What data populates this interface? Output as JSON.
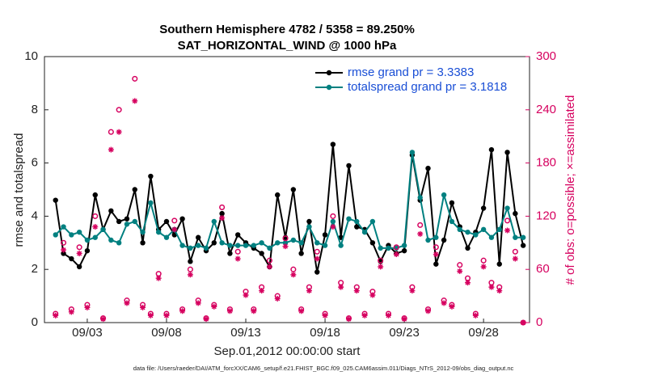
{
  "chart_data": {
    "type": "line",
    "title": "Southern Hemisphere 4782 / 5358 = 89.250%",
    "subtitle": "SAT_HORIZONTAL_WIND @ 1000 hPa",
    "ylabel": "rmse and totalspread",
    "y2label": "# of obs: o=possible; ×=assimilated",
    "xlabel": "Sep.01,2012 00:00:00 start",
    "footnote": "data file: /Users/raeder/DAI/ATM_forcXX/CAM6_setup/f.e21.FHIST_BGC.f09_025.CAM6assim.011/Diags_NTrS_2012-09/obs_diag_output.nc",
    "x": [
      0,
      0.5,
      1,
      1.5,
      2,
      2.5,
      3,
      3.5,
      4,
      4.5,
      5,
      5.5,
      6,
      6.5,
      7,
      7.5,
      8,
      8.5,
      9,
      9.5,
      10,
      10.5,
      11,
      11.5,
      12,
      12.5,
      13,
      13.5,
      14,
      14.5,
      15,
      15.5,
      16,
      16.5,
      17,
      17.5,
      18,
      18.5,
      19,
      19.5,
      20,
      20.5,
      21,
      21.5,
      22,
      22.5,
      23,
      23.5,
      24,
      24.5,
      25,
      25.5,
      26,
      26.5,
      27,
      27.5,
      28,
      28.5,
      29,
      29.5
    ],
    "xlim": [
      -0.7,
      29.9
    ],
    "xticks": [
      {
        "value": 2,
        "label": "09/03"
      },
      {
        "value": 7,
        "label": "09/08"
      },
      {
        "value": 12,
        "label": "09/13"
      },
      {
        "value": 17,
        "label": "09/18"
      },
      {
        "value": 22,
        "label": "09/23"
      },
      {
        "value": 27,
        "label": "09/28"
      }
    ],
    "ylim": [
      0,
      10
    ],
    "yticks": [
      0,
      2,
      4,
      6,
      8,
      10
    ],
    "y2lim": [
      0,
      300
    ],
    "y2ticks": [
      0,
      60,
      120,
      180,
      240,
      300
    ],
    "series": [
      {
        "name": "rmse grand pr = 3.3383",
        "color": "#000000",
        "marker": "filled-circle",
        "values": [
          4.6,
          2.6,
          2.4,
          2.1,
          2.7,
          4.8,
          3.5,
          4.2,
          3.8,
          3.9,
          5.0,
          3.0,
          5.5,
          3.5,
          3.8,
          3.3,
          3.9,
          2.3,
          3.2,
          2.7,
          3.0,
          4.1,
          2.6,
          3.3,
          3.0,
          2.8,
          2.6,
          2.1,
          4.8,
          3.2,
          5.0,
          2.6,
          3.8,
          1.9,
          3.3,
          6.7,
          3.2,
          5.9,
          3.6,
          3.5,
          3.0,
          2.3,
          2.9,
          2.6,
          2.7,
          6.3,
          4.6,
          5.8,
          2.2,
          3.1,
          4.5,
          3.6,
          2.8,
          3.4,
          4.3,
          6.5,
          2.2,
          6.4,
          4.1,
          2.9
        ]
      },
      {
        "name": "totalspread grand pr = 3.1818",
        "color": "#008080",
        "marker": "filled-circle",
        "values": [
          3.3,
          3.6,
          3.3,
          3.4,
          3.1,
          3.2,
          3.5,
          3.1,
          3.0,
          3.7,
          3.8,
          3.4,
          4.5,
          3.4,
          3.2,
          3.5,
          2.9,
          2.8,
          2.9,
          2.8,
          3.8,
          3.0,
          2.9,
          2.9,
          2.9,
          2.9,
          3.0,
          2.8,
          3.0,
          3.0,
          3.1,
          3.0,
          3.6,
          3.0,
          2.9,
          3.8,
          2.9,
          3.9,
          3.8,
          3.4,
          3.8,
          2.8,
          2.8,
          2.8,
          2.9,
          6.4,
          4.7,
          3.1,
          3.2,
          4.8,
          3.8,
          3.5,
          3.4,
          3.3,
          3.5,
          3.2,
          3.5,
          4.3,
          3.2,
          3.2
        ]
      },
      {
        "name": "possible",
        "color": "#d6005f",
        "marker": "open-circle",
        "axis": "y2",
        "values": [
          10,
          90,
          15,
          85,
          20,
          120,
          5,
          215,
          240,
          25,
          275,
          20,
          10,
          55,
          10,
          115,
          15,
          60,
          25,
          5,
          20,
          130,
          15,
          80,
          35,
          15,
          40,
          70,
          30,
          95,
          60,
          15,
          40,
          80,
          10,
          120,
          45,
          5,
          40,
          10,
          35,
          70,
          10,
          85,
          5,
          40,
          110,
          15,
          85,
          25,
          20,
          65,
          50,
          10,
          70,
          45,
          40,
          115,
          80,
          0
        ]
      },
      {
        "name": "assimilated",
        "color": "#d6005f",
        "marker": "asterisk",
        "axis": "y2",
        "values": [
          8,
          82,
          12,
          78,
          17,
          108,
          4,
          195,
          215,
          22,
          250,
          17,
          8,
          50,
          8,
          105,
          13,
          54,
          22,
          4,
          18,
          118,
          13,
          72,
          31,
          13,
          36,
          63,
          27,
          86,
          54,
          13,
          36,
          72,
          8,
          108,
          40,
          4,
          36,
          8,
          31,
          63,
          8,
          77,
          4,
          36,
          100,
          13,
          77,
          22,
          18,
          58,
          45,
          8,
          63,
          40,
          36,
          104,
          72,
          0
        ]
      }
    ],
    "legend": "upper right"
  }
}
